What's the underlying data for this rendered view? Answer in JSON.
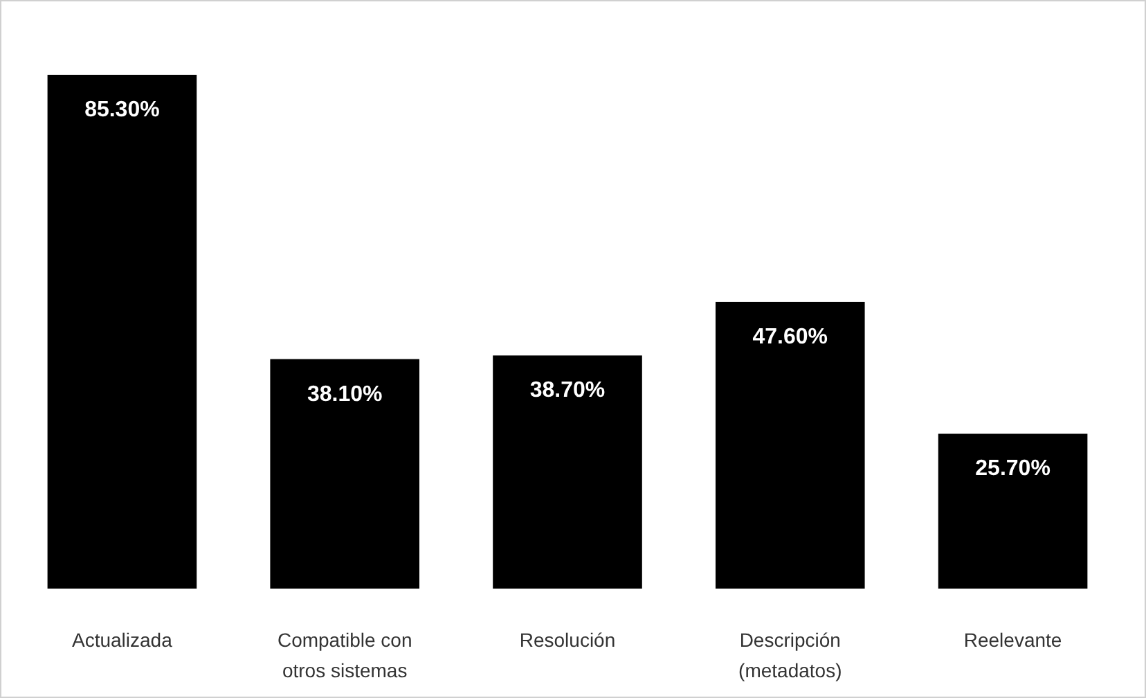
{
  "chart_data": {
    "type": "bar",
    "categories": [
      "Actualizada",
      "Compatible con otros sistemas",
      "Resolución",
      "Descripción (metadatos)",
      "Reelevante"
    ],
    "values": [
      85.3,
      38.1,
      38.7,
      47.6,
      25.7
    ],
    "value_labels": [
      "85.30%",
      "38.10%",
      "38.70%",
      "47.60%",
      "25.70%"
    ],
    "color": "#000000"
  }
}
